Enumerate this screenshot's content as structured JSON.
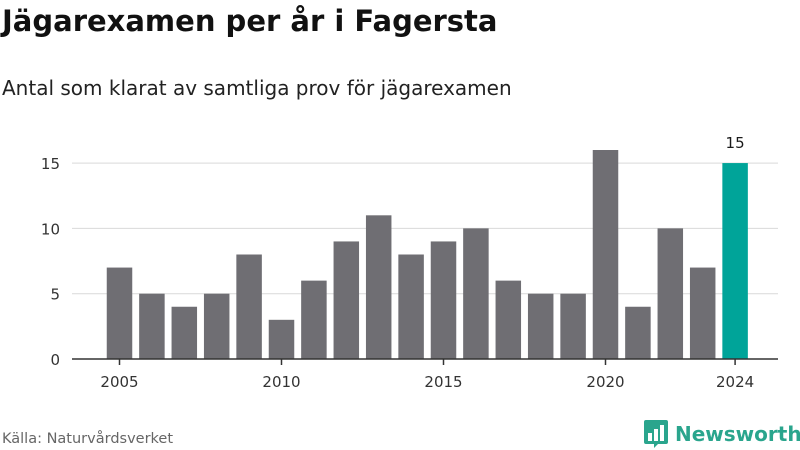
{
  "header": {
    "title": "Jägarexamen per år i Fagersta",
    "subtitle": "Antal som klarat av samtliga prov för jägarexamen"
  },
  "footer": {
    "source": "Källa: Naturvårdsverket",
    "brand": "Newsworthy",
    "brand_icon": "bar-chart-logo-icon"
  },
  "colors": {
    "bar": "#6f6e73",
    "highlight": "#00a499",
    "brand": "#2aa58d",
    "grid": "#d9d9d9",
    "axis": "#333333"
  },
  "chart_data": {
    "type": "bar",
    "x": [
      2005,
      2006,
      2007,
      2008,
      2009,
      2010,
      2011,
      2012,
      2013,
      2014,
      2015,
      2016,
      2017,
      2018,
      2019,
      2020,
      2021,
      2022,
      2023,
      2024
    ],
    "values": [
      7,
      5,
      4,
      5,
      8,
      3,
      6,
      9,
      11,
      8,
      9,
      10,
      6,
      5,
      5,
      16,
      4,
      10,
      7,
      15
    ],
    "x_ticks": [
      "2005",
      "2010",
      "2015",
      "2020",
      "2024"
    ],
    "y_ticks": [
      0,
      5,
      10,
      15
    ],
    "ylim": [
      0,
      16
    ],
    "highlight_x": 2024,
    "data_labels": [
      {
        "x": 2024,
        "text": "15"
      }
    ],
    "grid": true,
    "legend": "none"
  }
}
